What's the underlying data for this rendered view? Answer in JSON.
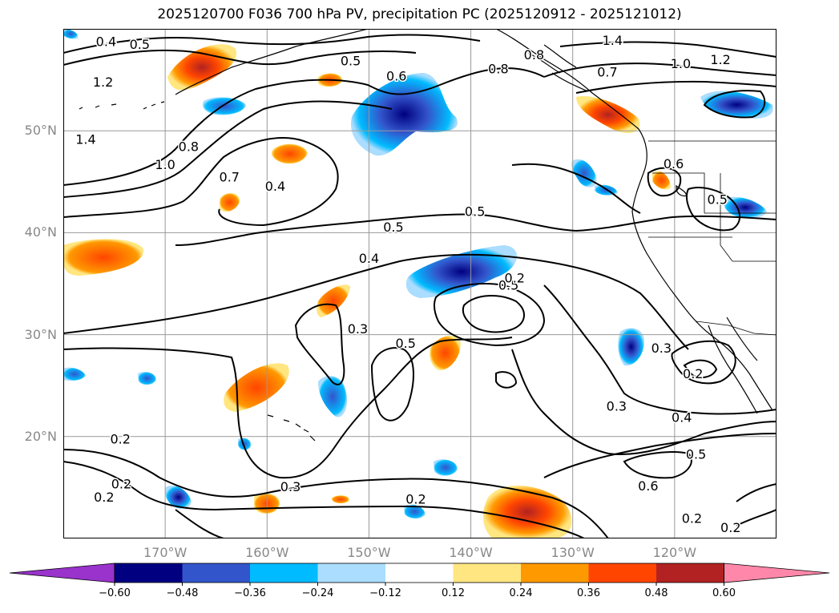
{
  "title": "2025120700 F036 700 hPa PV, precipitation PC (2025120912 - 2025121012)",
  "map": {
    "lat_labels": [
      "50°N",
      "40°N",
      "30°N",
      "20°N"
    ],
    "lat_values": [
      50,
      40,
      30,
      20
    ],
    "lon_labels": [
      "170°W",
      "160°W",
      "150°W",
      "140°W",
      "130°W",
      "120°W"
    ],
    "lon_values": [
      -170,
      -160,
      -150,
      -140,
      -130,
      -120
    ],
    "extent": {
      "lon_min": -180,
      "lon_max": -110,
      "lat_min": 10,
      "lat_max": 60
    },
    "contour_labels": [
      {
        "text": "0.4",
        "lon": -175.8,
        "lat": 58.8
      },
      {
        "text": "0.5",
        "lon": -172.5,
        "lat": 58.5
      },
      {
        "text": "1.2",
        "lon": -176.1,
        "lat": 54.8
      },
      {
        "text": "1.4",
        "lon": -177.8,
        "lat": 49.2
      },
      {
        "text": "0.8",
        "lon": -167.7,
        "lat": 48.5
      },
      {
        "text": "1.0",
        "lon": -170.0,
        "lat": 46.7
      },
      {
        "text": "0.7",
        "lon": -163.7,
        "lat": 45.5
      },
      {
        "text": "0.4",
        "lon": -159.2,
        "lat": 44.6
      },
      {
        "text": "0.5",
        "lon": -147.6,
        "lat": 40.6
      },
      {
        "text": "0.5",
        "lon": -139.6,
        "lat": 42.1
      },
      {
        "text": "0.4",
        "lon": -150.0,
        "lat": 37.5
      },
      {
        "text": "0.5",
        "lon": -151.8,
        "lat": 56.9
      },
      {
        "text": "0.6",
        "lon": -147.3,
        "lat": 55.4
      },
      {
        "text": "0.8",
        "lon": -137.3,
        "lat": 56.1
      },
      {
        "text": "0.8",
        "lon": -133.8,
        "lat": 57.5
      },
      {
        "text": "1.4",
        "lon": -126.1,
        "lat": 58.9
      },
      {
        "text": "0.7",
        "lon": -126.6,
        "lat": 55.8
      },
      {
        "text": "1.0",
        "lon": -119.4,
        "lat": 56.6
      },
      {
        "text": "1.2",
        "lon": -115.5,
        "lat": 57.0
      },
      {
        "text": "0.5",
        "lon": -136.3,
        "lat": 34.9
      },
      {
        "text": "0.2",
        "lon": -135.7,
        "lat": 35.6
      },
      {
        "text": "0.6",
        "lon": -120.1,
        "lat": 46.8
      },
      {
        "text": "0.5",
        "lon": -115.8,
        "lat": 43.3
      },
      {
        "text": "0.3",
        "lon": -151.1,
        "lat": 30.6
      },
      {
        "text": "0.5",
        "lon": -146.4,
        "lat": 29.2
      },
      {
        "text": "0.3",
        "lon": -125.7,
        "lat": 23.0
      },
      {
        "text": "0.3",
        "lon": -121.3,
        "lat": 28.7
      },
      {
        "text": "0.2",
        "lon": -118.2,
        "lat": 26.2
      },
      {
        "text": "0.4",
        "lon": -119.3,
        "lat": 21.9
      },
      {
        "text": "0.5",
        "lon": -117.9,
        "lat": 18.3
      },
      {
        "text": "0.6",
        "lon": -122.6,
        "lat": 15.2
      },
      {
        "text": "0.3",
        "lon": -157.7,
        "lat": 15.1
      },
      {
        "text": "0.2",
        "lon": -145.4,
        "lat": 13.9
      },
      {
        "text": "0.2",
        "lon": -174.4,
        "lat": 19.8
      },
      {
        "text": "0.2",
        "lon": -174.3,
        "lat": 15.4
      },
      {
        "text": "0.2",
        "lon": -176.0,
        "lat": 14.1
      },
      {
        "text": "0.2",
        "lon": -118.3,
        "lat": 12.0
      },
      {
        "text": "0.2",
        "lon": -114.5,
        "lat": 11.1
      }
    ],
    "colors": {
      "contour": "#000000",
      "grid": "#999999",
      "coast": "#000000"
    }
  },
  "colorbar": {
    "ticks": [
      "−0.60",
      "−0.48",
      "−0.36",
      "−0.24",
      "−0.12",
      "0.12",
      "0.24",
      "0.36",
      "0.48",
      "0.60"
    ],
    "colors": [
      "#9933cc",
      "#000080",
      "#3355cc",
      "#00bbff",
      "#aaddff",
      "#ffffff",
      "#ffe680",
      "#ff9900",
      "#ff4500",
      "#b22222",
      "#ff88aa"
    ]
  }
}
